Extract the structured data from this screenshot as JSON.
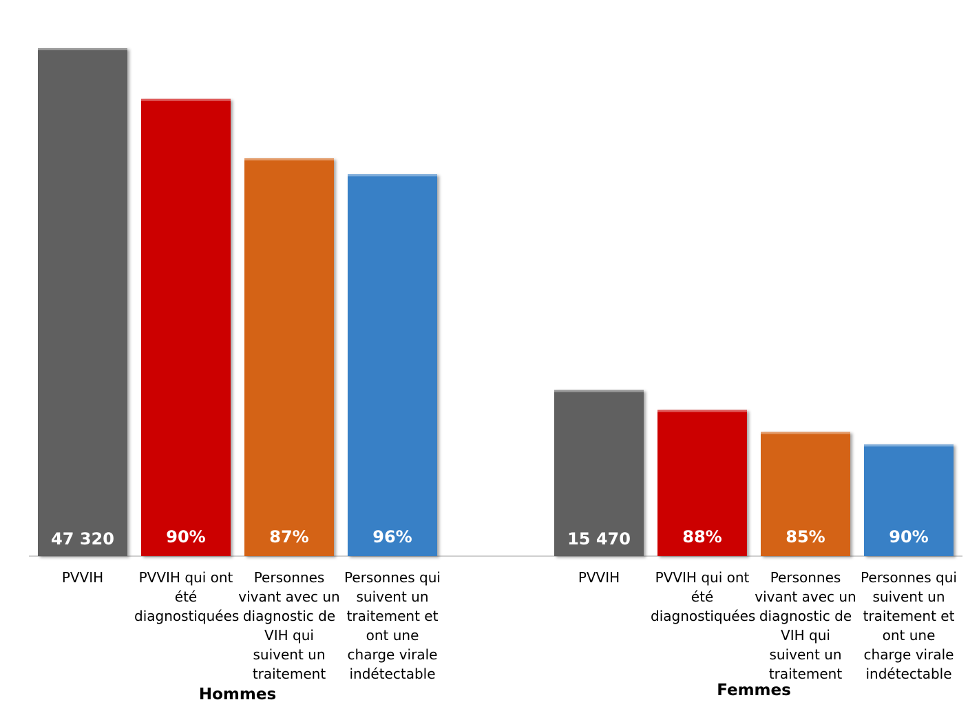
{
  "chart_data": {
    "type": "bar",
    "groups": [
      {
        "name": "Hommes",
        "bars": [
          {
            "category": "PVVIH",
            "value": 47320,
            "label": "47 320",
            "color": "#606060"
          },
          {
            "category": "PVVIH qui ont été diagnostiquées",
            "value": 42588,
            "label": "90%",
            "color": "#cc0000"
          },
          {
            "category": "Personnes vivant avec un diagnostic de VIH qui suivent un traitement",
            "value": 37052,
            "label": "87%",
            "color": "#d46416"
          },
          {
            "category": "Personnes qui suivent un traitement et ont une charge virale indétectable",
            "value": 35570,
            "label": "96%",
            "color": "#3880c6"
          }
        ]
      },
      {
        "name": "Femmes",
        "bars": [
          {
            "category": "PVVIH",
            "value": 15470,
            "label": "15 470",
            "color": "#606060"
          },
          {
            "category": "PVVIH qui ont été diagnostiquées",
            "value": 13614,
            "label": "88%",
            "color": "#cc0000"
          },
          {
            "category": "Personnes vivant avec un diagnostic de VIH qui suivent un traitement",
            "value": 11572,
            "label": "85%",
            "color": "#d46416"
          },
          {
            "category": "Personnes qui suivent un traitement et ont une charge virale indétectable",
            "value": 10415,
            "label": "90%",
            "color": "#3880c6"
          }
        ]
      }
    ],
    "ylim": [
      0,
      47320
    ],
    "grid": false,
    "legend": "none",
    "title": "",
    "xlabel": "",
    "ylabel": ""
  }
}
